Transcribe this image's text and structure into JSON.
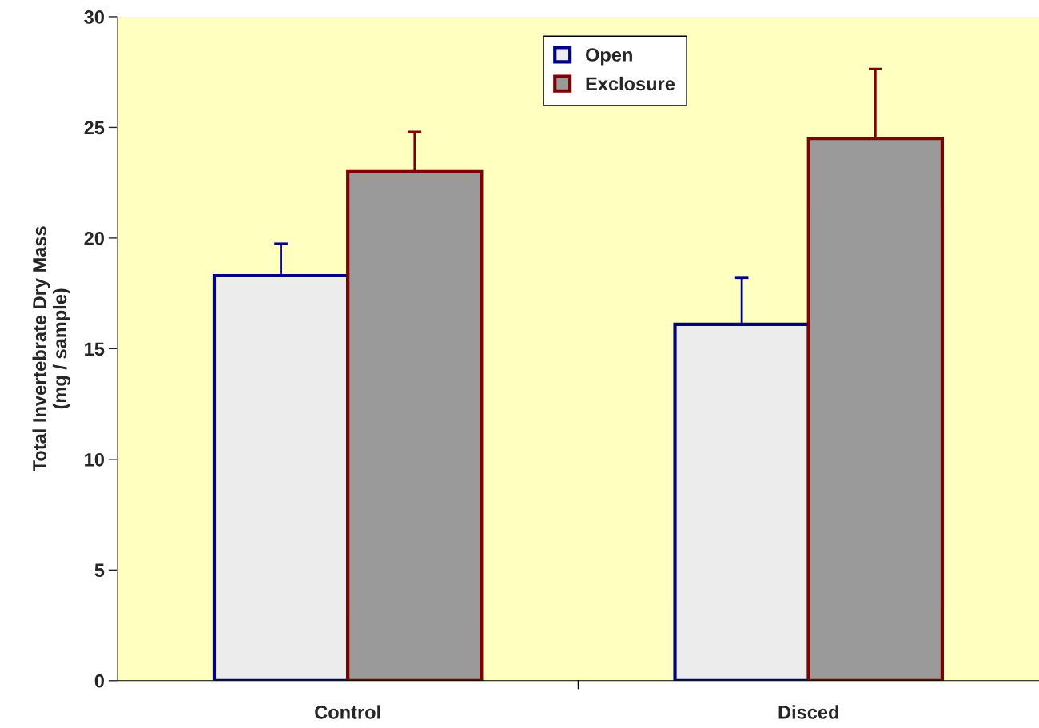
{
  "chart_data": {
    "type": "bar",
    "ylabel": "Total Invertebrate Dry Mass\n(mg / sample)",
    "categories": [
      "Control",
      "Disced"
    ],
    "series": [
      {
        "name": "Open",
        "color": "#000080",
        "values": [
          18.3,
          16.1
        ],
        "errors": [
          [
            18.3,
            19.75
          ],
          [
            16.1,
            18.2
          ]
        ]
      },
      {
        "name": "Exclosure",
        "color": "#800000",
        "values": [
          23.0,
          24.5
        ],
        "errors": [
          [
            23.0,
            24.8
          ],
          [
            24.5,
            27.65
          ]
        ]
      }
    ],
    "ylim": [
      0,
      30
    ],
    "yticks": [
      0,
      5,
      10,
      15,
      20,
      25,
      30
    ],
    "grid": false,
    "legend": "top"
  }
}
